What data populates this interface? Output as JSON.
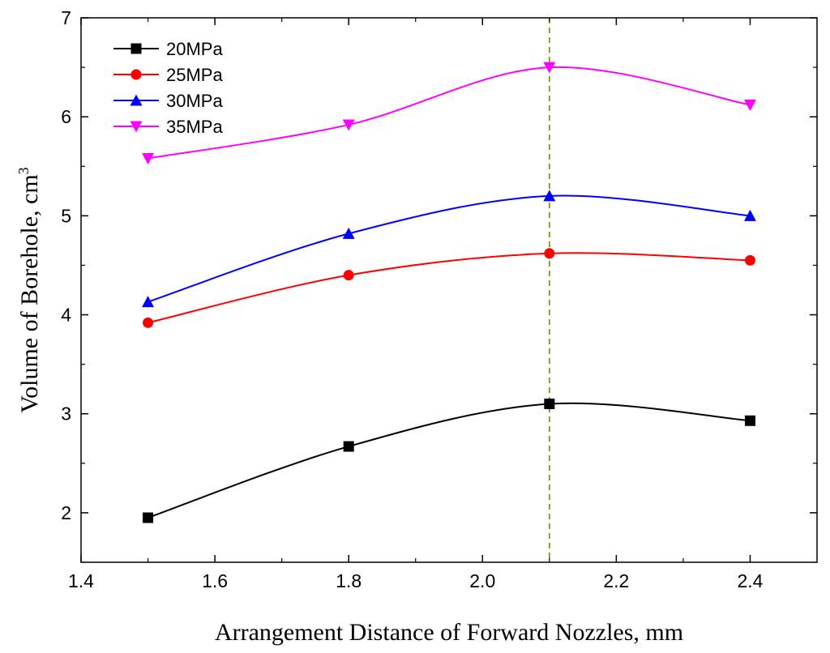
{
  "chart_data": {
    "type": "line",
    "title": "",
    "xlabel": "Arrangement Distance of Forward Nozzles, mm",
    "ylabel": "Volume of Borehole, cm",
    "ylabel_sup": "3",
    "xlim": [
      1.4,
      2.5
    ],
    "ylim": [
      1.5,
      7
    ],
    "xticks": [
      1.4,
      1.6,
      1.8,
      2.0,
      2.2,
      2.4
    ],
    "xtick_labels": [
      "1.4",
      "1.6",
      "1.8",
      "2.0",
      "2.2",
      "2.4"
    ],
    "yticks": [
      2,
      3,
      4,
      5,
      6,
      7
    ],
    "ytick_labels": [
      "2",
      "3",
      "4",
      "5",
      "6",
      "7"
    ],
    "x": [
      1.5,
      1.8,
      2.1,
      2.4
    ],
    "series": [
      {
        "name": "20MPa",
        "values": [
          1.95,
          2.67,
          3.1,
          2.93
        ],
        "color": "#000000",
        "marker": "square"
      },
      {
        "name": "25MPa",
        "values": [
          3.92,
          4.4,
          4.62,
          4.55
        ],
        "color": "#ff0000",
        "marker": "circle"
      },
      {
        "name": "30MPa",
        "values": [
          4.13,
          4.82,
          5.2,
          5.0
        ],
        "color": "#0000ff",
        "marker": "triangle-up"
      },
      {
        "name": "35MPa",
        "values": [
          5.58,
          5.92,
          6.5,
          6.12
        ],
        "color": "#ff00ff",
        "marker": "triangle-down"
      }
    ],
    "reference_line": {
      "x": 2.1,
      "color": "#8c8c1e",
      "style": "dashed"
    },
    "legend_position": "top-left",
    "grid": false
  }
}
